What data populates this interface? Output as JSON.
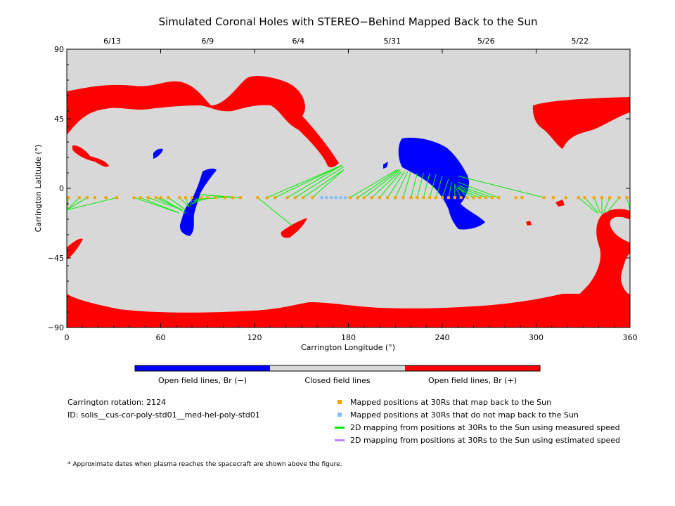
{
  "title": "Simulated Coronal Holes with STEREO−Behind Mapped Back to the Sun",
  "colors": {
    "closed": "#d8d8d8",
    "open_pos": "#ff0000",
    "open_neg": "#0000ff",
    "mapped": "#f0a800",
    "unmapped": "#80c0ff",
    "measured": "#00ee00",
    "estimated": "#c080ff"
  },
  "chart_data": {
    "type": "map",
    "xlabel": "Carrington Longitude (°)",
    "ylabel": "Carrington Latitude (°)",
    "xlim": [
      0,
      360
    ],
    "ylim": [
      -90,
      90
    ],
    "xticks": [
      0,
      60,
      120,
      180,
      240,
      300,
      360
    ],
    "yticks": [
      -90,
      -45,
      0,
      45,
      90
    ],
    "top_axis_dates": [
      {
        "label": "6/13",
        "lon": 29
      },
      {
        "label": "6/9",
        "lon": 90
      },
      {
        "label": "6/4",
        "lon": 148
      },
      {
        "label": "5/31",
        "lon": 208
      },
      {
        "label": "5/26",
        "lon": 268
      },
      {
        "label": "5/22",
        "lon": 328
      }
    ],
    "mapped_positions_lat": -6,
    "mapped_positions_lon": [
      1,
      8,
      13,
      18,
      25,
      32,
      43,
      47,
      52,
      57,
      60,
      65,
      72,
      76,
      80,
      86,
      90,
      95,
      101,
      106,
      111,
      122,
      128,
      133,
      141,
      146,
      151,
      157,
      181,
      186,
      190,
      195,
      200,
      205,
      210,
      215,
      220,
      224,
      228,
      232,
      236,
      240,
      244,
      248,
      252,
      256,
      260,
      264,
      268,
      272,
      276,
      287,
      291,
      305,
      311,
      319,
      327,
      331,
      337,
      342,
      347,
      353,
      358
    ],
    "unmapped_positions_lon": [
      163,
      166,
      169,
      172,
      175,
      178
    ],
    "measured_mappings": [
      {
        "from": [
          1,
          -6
        ],
        "to": [
          0,
          -14
        ]
      },
      {
        "from": [
          8,
          -6
        ],
        "to": [
          0,
          -14
        ]
      },
      {
        "from": [
          13,
          -6
        ],
        "to": [
          0,
          -14
        ]
      },
      {
        "from": [
          32,
          -6
        ],
        "to": [
          0,
          -14
        ]
      },
      {
        "from": [
          43,
          -6
        ],
        "to": [
          72,
          -16
        ]
      },
      {
        "from": [
          47,
          -6
        ],
        "to": [
          72,
          -16
        ]
      },
      {
        "from": [
          52,
          -6
        ],
        "to": [
          74,
          -14
        ]
      },
      {
        "from": [
          57,
          -6
        ],
        "to": [
          74,
          -14
        ]
      },
      {
        "from": [
          60,
          -6
        ],
        "to": [
          76,
          -16
        ]
      },
      {
        "from": [
          65,
          -6
        ],
        "to": [
          76,
          -14
        ]
      },
      {
        "from": [
          72,
          -6
        ],
        "to": [
          78,
          -12
        ]
      },
      {
        "from": [
          76,
          -6
        ],
        "to": [
          78,
          -12
        ]
      },
      {
        "from": [
          80,
          -6
        ],
        "to": [
          79,
          -12
        ]
      },
      {
        "from": [
          86,
          -6
        ],
        "to": [
          80,
          -10
        ]
      },
      {
        "from": [
          90,
          -6
        ],
        "to": [
          80,
          -10
        ]
      },
      {
        "from": [
          95,
          -6
        ],
        "to": [
          81,
          -8
        ]
      },
      {
        "from": [
          101,
          -6
        ],
        "to": [
          82,
          -7
        ]
      },
      {
        "from": [
          106,
          -6
        ],
        "to": [
          85,
          -4
        ]
      },
      {
        "from": [
          111,
          -6
        ],
        "to": [
          85,
          -4
        ]
      },
      {
        "from": [
          122,
          -6
        ],
        "to": [
          144,
          -24
        ]
      },
      {
        "from": [
          128,
          -6
        ],
        "to": [
          176,
          15
        ]
      },
      {
        "from": [
          133,
          -6
        ],
        "to": [
          176,
          15
        ]
      },
      {
        "from": [
          141,
          -6
        ],
        "to": [
          176,
          15
        ]
      },
      {
        "from": [
          146,
          -6
        ],
        "to": [
          177,
          14
        ]
      },
      {
        "from": [
          151,
          -6
        ],
        "to": [
          177,
          12
        ]
      },
      {
        "from": [
          157,
          -6
        ],
        "to": [
          177,
          12
        ]
      },
      {
        "from": [
          181,
          -6
        ],
        "to": [
          211,
          12
        ]
      },
      {
        "from": [
          186,
          -6
        ],
        "to": [
          212,
          12
        ]
      },
      {
        "from": [
          190,
          -6
        ],
        "to": [
          213,
          12
        ]
      },
      {
        "from": [
          195,
          -6
        ],
        "to": [
          213,
          11
        ]
      },
      {
        "from": [
          200,
          -6
        ],
        "to": [
          214,
          11
        ]
      },
      {
        "from": [
          205,
          -6
        ],
        "to": [
          216,
          11
        ]
      },
      {
        "from": [
          210,
          -6
        ],
        "to": [
          218,
          11
        ]
      },
      {
        "from": [
          215,
          -6
        ],
        "to": [
          220,
          11
        ]
      },
      {
        "from": [
          220,
          -6
        ],
        "to": [
          224,
          10
        ]
      },
      {
        "from": [
          224,
          -6
        ],
        "to": [
          228,
          10
        ]
      },
      {
        "from": [
          228,
          -6
        ],
        "to": [
          232,
          10
        ]
      },
      {
        "from": [
          232,
          -6
        ],
        "to": [
          236,
          9
        ]
      },
      {
        "from": [
          236,
          -6
        ],
        "to": [
          240,
          8
        ]
      },
      {
        "from": [
          240,
          -6
        ],
        "to": [
          244,
          6
        ]
      },
      {
        "from": [
          244,
          -6
        ],
        "to": [
          246,
          4
        ]
      },
      {
        "from": [
          248,
          -6
        ],
        "to": [
          248,
          3
        ]
      },
      {
        "from": [
          252,
          -6
        ],
        "to": [
          248,
          2
        ]
      },
      {
        "from": [
          256,
          -6
        ],
        "to": [
          250,
          1
        ]
      },
      {
        "from": [
          260,
          -6
        ],
        "to": [
          250,
          0
        ]
      },
      {
        "from": [
          264,
          -6
        ],
        "to": [
          250,
          0
        ]
      },
      {
        "from": [
          268,
          -6
        ],
        "to": [
          250,
          1
        ]
      },
      {
        "from": [
          272,
          -6
        ],
        "to": [
          250,
          2
        ]
      },
      {
        "from": [
          276,
          -6
        ],
        "to": [
          250,
          4
        ]
      },
      {
        "from": [
          305,
          -6
        ],
        "to": [
          250,
          8
        ]
      },
      {
        "from": [
          327,
          -6
        ],
        "to": [
          339,
          -16
        ]
      },
      {
        "from": [
          331,
          -6
        ],
        "to": [
          340,
          -16
        ]
      },
      {
        "from": [
          337,
          -6
        ],
        "to": [
          341,
          -16
        ]
      },
      {
        "from": [
          342,
          -6
        ],
        "to": [
          342,
          -17
        ]
      },
      {
        "from": [
          347,
          -6
        ],
        "to": [
          343,
          -16
        ]
      },
      {
        "from": [
          353,
          -6
        ],
        "to": [
          345,
          -16
        ]
      },
      {
        "from": [
          358,
          -6
        ],
        "to": [
          360,
          -14
        ]
      }
    ]
  },
  "colorbar": {
    "neg_label": "Open field lines, Br (−)",
    "closed_label": "Closed field lines",
    "pos_label": "Open field lines, Br (+)"
  },
  "info": {
    "rotation": "Carrington rotation: 2124",
    "id": "ID: solis__cus-cor-poly-std01__med-hel-poly-std01",
    "footnote": "* Approximate dates when plasma reaches the spacecraft are shown above the figure."
  },
  "legend": [
    {
      "label": "Mapped positions at 30Rs that map back to the Sun",
      "kind": "square",
      "color": "#f0a800"
    },
    {
      "label": "Mapped positions at 30Rs that do not map back to the Sun",
      "kind": "square",
      "color": "#80c0ff"
    },
    {
      "label": "2D mapping from positions at 30Rs to the Sun using measured speed",
      "kind": "line",
      "color": "#00ee00"
    },
    {
      "label": "2D mapping from positions at 30Rs to the Sun using estimated speed",
      "kind": "line",
      "color": "#c080ff"
    }
  ]
}
